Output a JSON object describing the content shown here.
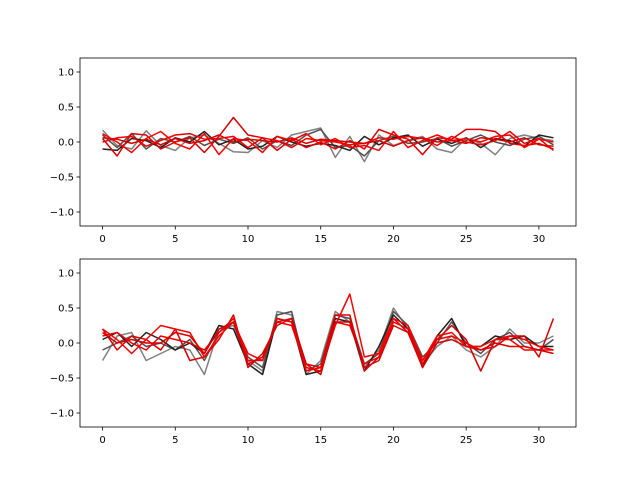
{
  "chart_data": [
    {
      "type": "line",
      "xlim": [
        -1.55,
        32.55
      ],
      "ylim": [
        -1.2,
        1.2
      ],
      "xticks": [
        0,
        5,
        10,
        15,
        20,
        25,
        30
      ],
      "xtick_labels": [
        "0",
        "5",
        "10",
        "15",
        "20",
        "25",
        "30"
      ],
      "yticks": [
        -1.0,
        -0.5,
        0.0,
        0.5,
        1.0
      ],
      "ytick_labels": [
        "−1.0",
        "−0.5",
        "0.0",
        "0.5",
        "1.0"
      ],
      "grid": false,
      "x": [
        0,
        1,
        2,
        3,
        4,
        5,
        6,
        7,
        8,
        9,
        10,
        11,
        12,
        13,
        14,
        15,
        16,
        17,
        18,
        19,
        20,
        21,
        22,
        23,
        24,
        25,
        26,
        27,
        28,
        29,
        30,
        31
      ],
      "series": [
        {
          "color": "#808080",
          "values": [
            0.17,
            -0.05,
            -0.1,
            0.16,
            -0.05,
            -0.12,
            0.06,
            0.1,
            -0.02,
            -0.14,
            -0.15,
            0.02,
            -0.08,
            0.1,
            0.15,
            0.2,
            -0.22,
            0.08,
            -0.28,
            0.1,
            -0.05,
            0.02,
            0.08,
            -0.1,
            -0.15,
            0.05,
            -0.02,
            -0.18,
            0.05,
            0.1,
            0.05,
            0.02
          ]
        },
        {
          "color": "#505050",
          "values": [
            0.1,
            -0.08,
            0.12,
            -0.1,
            0.05,
            0.0,
            0.08,
            -0.05,
            0.04,
            -0.02,
            0.06,
            -0.1,
            0.02,
            -0.05,
            0.1,
            0.18,
            -0.08,
            -0.05,
            -0.2,
            0.02,
            0.08,
            -0.02,
            0.0,
            0.05,
            -0.06,
            0.02,
            0.1,
            0.0,
            -0.05,
            0.04,
            0.08,
            -0.04
          ]
        },
        {
          "color": "#202020",
          "values": [
            -0.1,
            -0.12,
            0.05,
            0.02,
            -0.08,
            0.06,
            0.0,
            0.15,
            -0.04,
            0.04,
            -0.1,
            -0.06,
            0.08,
            0.0,
            -0.06,
            -0.02,
            -0.05,
            -0.12,
            0.08,
            -0.04,
            0.06,
            0.1,
            -0.06,
            0.04,
            -0.02,
            0.06,
            -0.08,
            0.05,
            0.02,
            -0.06,
            0.1,
            0.06
          ]
        },
        {
          "color": "#e00000",
          "values": [
            0.05,
            -0.2,
            0.12,
            0.1,
            -0.1,
            0.0,
            0.06,
            -0.15,
            0.08,
            0.35,
            0.1,
            0.06,
            -0.12,
            0.04,
            -0.08,
            0.0,
            -0.1,
            0.02,
            -0.1,
            0.18,
            0.1,
            0.04,
            -0.18,
            0.06,
            0.04,
            0.18,
            0.18,
            0.15,
            -0.02,
            -0.05,
            -0.02,
            -0.1
          ]
        },
        {
          "color": "#ff0000",
          "values": [
            0.12,
            0.0,
            -0.15,
            0.05,
            0.15,
            -0.02,
            -0.1,
            0.12,
            -0.18,
            0.05,
            0.02,
            -0.15,
            0.08,
            0.02,
            0.12,
            -0.04,
            0.05,
            -0.08,
            -0.05,
            -0.12,
            0.15,
            -0.08,
            0.02,
            0.1,
            0.02,
            0.05,
            0.0,
            0.08,
            0.1,
            -0.08,
            0.04,
            0.0
          ]
        },
        {
          "color": "#f00000",
          "values": [
            0.0,
            0.06,
            0.08,
            -0.06,
            0.02,
            0.1,
            0.12,
            0.04,
            0.05,
            0.08,
            -0.08,
            0.06,
            0.02,
            -0.08,
            0.05,
            0.02,
            0.0,
            -0.04,
            -0.02,
            0.06,
            0.04,
            0.08,
            0.05,
            -0.05,
            0.08,
            0.0,
            -0.04,
            0.02,
            0.15,
            -0.02,
            0.05,
            -0.12
          ]
        },
        {
          "color": "#d80000",
          "values": [
            0.06,
            0.04,
            -0.02,
            0.04,
            -0.04,
            0.05,
            -0.02,
            0.02,
            0.1,
            0.0,
            0.04,
            0.02,
            0.0,
            0.06,
            -0.02,
            0.04,
            0.02,
            0.0,
            -0.02,
            0.02,
            -0.06,
            0.02,
            0.06,
            0.0,
            0.02,
            -0.02,
            0.06,
            0.04,
            0.0,
            0.06,
            -0.04,
            -0.06
          ]
        }
      ]
    },
    {
      "type": "line",
      "xlim": [
        -1.55,
        32.55
      ],
      "ylim": [
        -1.2,
        1.2
      ],
      "xticks": [
        0,
        5,
        10,
        15,
        20,
        25,
        30
      ],
      "xtick_labels": [
        "0",
        "5",
        "10",
        "15",
        "20",
        "25",
        "30"
      ],
      "yticks": [
        -1.0,
        -0.5,
        0.0,
        0.5,
        1.0
      ],
      "ytick_labels": [
        "−1.0",
        "−0.5",
        "0.0",
        "0.5",
        "1.0"
      ],
      "grid": false,
      "x": [
        0,
        1,
        2,
        3,
        4,
        5,
        6,
        7,
        8,
        9,
        10,
        11,
        12,
        13,
        14,
        15,
        16,
        17,
        18,
        19,
        20,
        21,
        22,
        23,
        24,
        25,
        26,
        27,
        28,
        29,
        30,
        31
      ],
      "series": [
        {
          "color": "#808080",
          "values": [
            -0.25,
            0.1,
            0.15,
            -0.25,
            -0.15,
            -0.05,
            -0.1,
            -0.45,
            0.2,
            0.25,
            -0.25,
            -0.4,
            0.45,
            0.4,
            -0.45,
            -0.25,
            0.45,
            0.3,
            -0.35,
            -0.1,
            0.5,
            0.2,
            -0.3,
            -0.05,
            0.1,
            -0.1,
            -0.2,
            -0.05,
            0.2,
            0.0,
            0.0,
            0.1
          ]
        },
        {
          "color": "#505050",
          "values": [
            -0.1,
            0.0,
            0.1,
            -0.05,
            0.0,
            -0.1,
            0.05,
            -0.25,
            0.15,
            0.3,
            -0.2,
            -0.35,
            0.4,
            0.45,
            -0.4,
            -0.3,
            0.4,
            0.35,
            -0.3,
            -0.15,
            0.45,
            0.25,
            -0.2,
            0.0,
            0.3,
            0.0,
            -0.15,
            0.05,
            0.15,
            -0.05,
            -0.1,
            0.05
          ]
        },
        {
          "color": "#202020",
          "values": [
            0.05,
            0.15,
            -0.05,
            0.15,
            0.05,
            -0.1,
            0.0,
            -0.15,
            0.25,
            0.2,
            -0.3,
            -0.45,
            0.35,
            0.3,
            -0.45,
            -0.4,
            0.35,
            0.3,
            -0.4,
            -0.05,
            0.4,
            0.2,
            -0.35,
            0.1,
            0.35,
            -0.05,
            -0.05,
            0.1,
            0.05,
            0.1,
            -0.05,
            -0.05
          ]
        },
        {
          "color": "#e00000",
          "values": [
            0.2,
            -0.1,
            0.1,
            0.05,
            -0.1,
            0.2,
            -0.25,
            -0.2,
            0.05,
            0.4,
            -0.35,
            -0.15,
            0.25,
            0.35,
            -0.3,
            -0.35,
            0.4,
            0.4,
            -0.4,
            -0.2,
            0.35,
            0.15,
            -0.3,
            0.05,
            0.25,
            0.05,
            -0.4,
            0.05,
            0.1,
            0.1,
            -0.2,
            0.35
          ]
        },
        {
          "color": "#ff0000",
          "values": [
            0.2,
            0.05,
            -0.15,
            0.05,
            0.25,
            0.2,
            0.15,
            -0.2,
            0.1,
            0.3,
            -0.15,
            -0.25,
            0.3,
            0.25,
            -0.35,
            -0.4,
            0.25,
            0.7,
            -0.2,
            -0.15,
            0.35,
            0.25,
            -0.25,
            0.1,
            0.15,
            -0.05,
            -0.05,
            0.05,
            0.05,
            -0.1,
            -0.1,
            -0.1
          ]
        },
        {
          "color": "#f00000",
          "values": [
            0.1,
            0.15,
            0.0,
            -0.1,
            0.1,
            0.05,
            0.0,
            -0.1,
            0.15,
            0.35,
            -0.25,
            -0.25,
            0.35,
            0.3,
            -0.4,
            -0.35,
            0.3,
            0.25,
            -0.3,
            -0.2,
            0.3,
            0.2,
            -0.25,
            0.05,
            0.1,
            0.0,
            -0.1,
            -0.05,
            0.1,
            0.05,
            -0.05,
            -0.1
          ]
        },
        {
          "color": "#d80000",
          "values": [
            0.15,
            0.0,
            0.05,
            0.0,
            0.0,
            0.15,
            0.1,
            -0.15,
            0.2,
            0.3,
            -0.3,
            -0.2,
            0.3,
            0.35,
            -0.3,
            -0.45,
            0.3,
            0.3,
            -0.35,
            -0.25,
            0.25,
            0.15,
            -0.35,
            0.0,
            0.05,
            -0.05,
            -0.1,
            0.0,
            -0.05,
            -0.05,
            -0.1,
            -0.15
          ]
        }
      ]
    }
  ]
}
